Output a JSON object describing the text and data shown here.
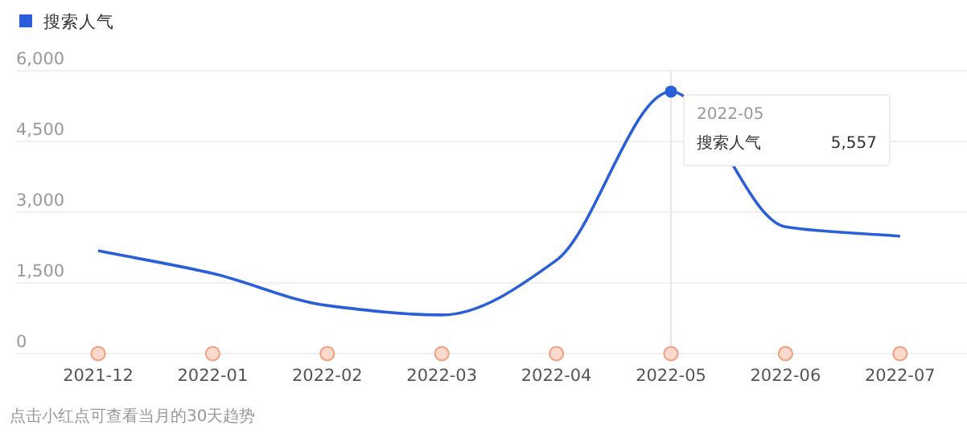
{
  "chart_data": {
    "type": "line",
    "categories": [
      "2021-12",
      "2022-01",
      "2022-02",
      "2022-03",
      "2022-04",
      "2022-05",
      "2022-06",
      "2022-07"
    ],
    "series": [
      {
        "name": "搜索人气",
        "color": "#2b5fd9",
        "values": [
          2180,
          1700,
          1020,
          820,
          1980,
          5557,
          2690,
          2490
        ]
      },
      {
        "type": "scatter",
        "color": "#fcd9cc",
        "marker": "circle",
        "values": [
          0,
          0,
          0,
          0,
          0,
          0,
          0,
          0
        ]
      }
    ],
    "ylim": [
      0,
      6000
    ],
    "yticks": [
      {
        "value": 0,
        "label": "0"
      },
      {
        "value": 1500,
        "label": "1,500"
      },
      {
        "value": 3000,
        "label": "3,000"
      },
      {
        "value": 4500,
        "label": "4,500"
      },
      {
        "value": 6000,
        "label": "6,000"
      }
    ],
    "ref_lines": [
      {
        "axis": "x",
        "value": "2022-05",
        "color": "#e6e6e6"
      }
    ],
    "grid": "y",
    "legend": "top left",
    "marker": "none",
    "line_style": "solid",
    "annotations": [
      "5,557",
      "点击小红点可查看当月的30天趋势"
    ]
  }
}
